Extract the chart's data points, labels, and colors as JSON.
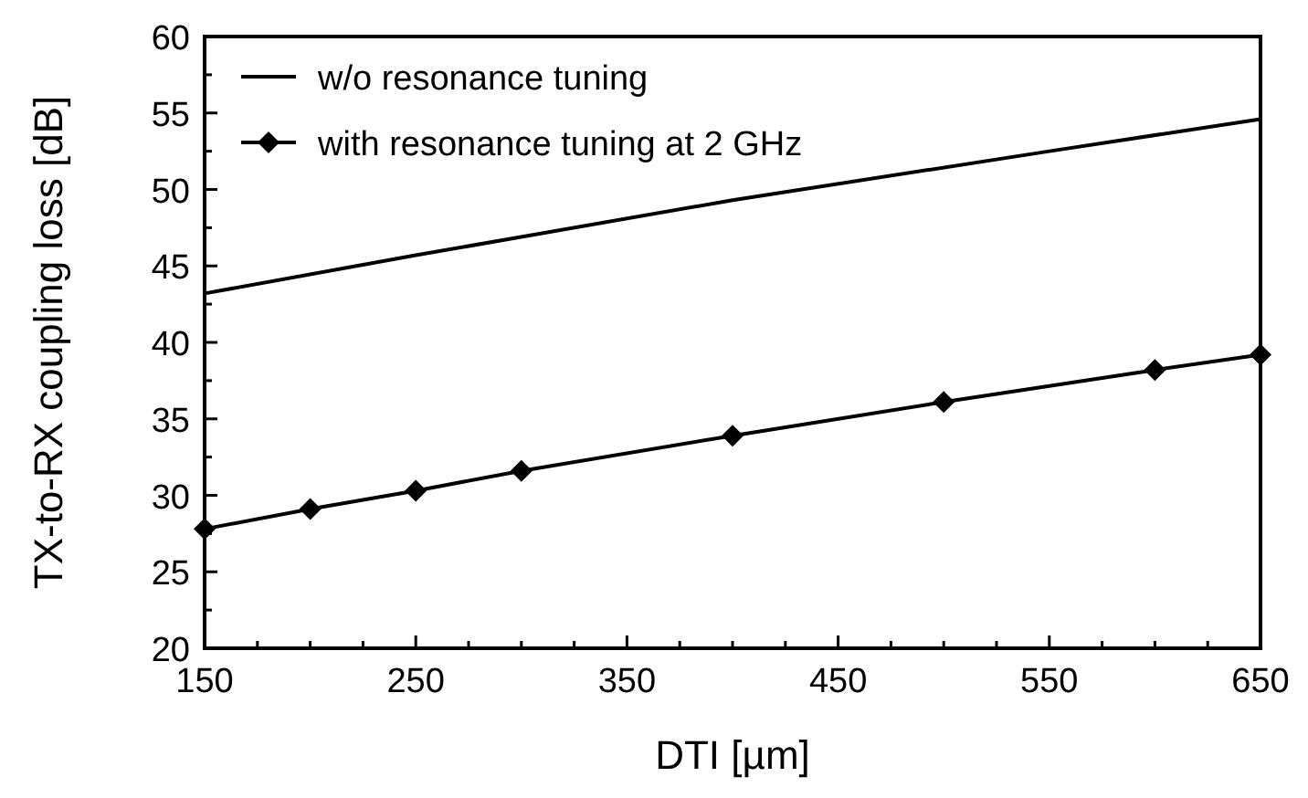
{
  "chart_data": {
    "type": "line",
    "xlabel": "DTI [µm]",
    "ylabel": "TX-to-RX coupling loss [dB]",
    "xlim": [
      150,
      650
    ],
    "xticks": [
      150,
      250,
      350,
      450,
      550,
      650
    ],
    "ylim": [
      20,
      60
    ],
    "yticks": [
      20,
      25,
      30,
      35,
      40,
      45,
      50,
      55,
      60
    ],
    "legend": "top left",
    "grid": false,
    "series": [
      {
        "name": "w/o resonance tuning",
        "color": "#000000",
        "marker": "none",
        "x": [
          150,
          250,
          400,
          550,
          650
        ],
        "values": [
          43.2,
          45.7,
          49.3,
          52.5,
          54.6
        ]
      },
      {
        "name": "with resonance tuning at 2 GHz",
        "color": "#000000",
        "marker": "diamond",
        "x": [
          150,
          200,
          250,
          300,
          400,
          500,
          600,
          650
        ],
        "values": [
          27.8,
          29.1,
          30.3,
          31.6,
          33.9,
          36.1,
          38.2,
          39.2
        ]
      }
    ]
  }
}
